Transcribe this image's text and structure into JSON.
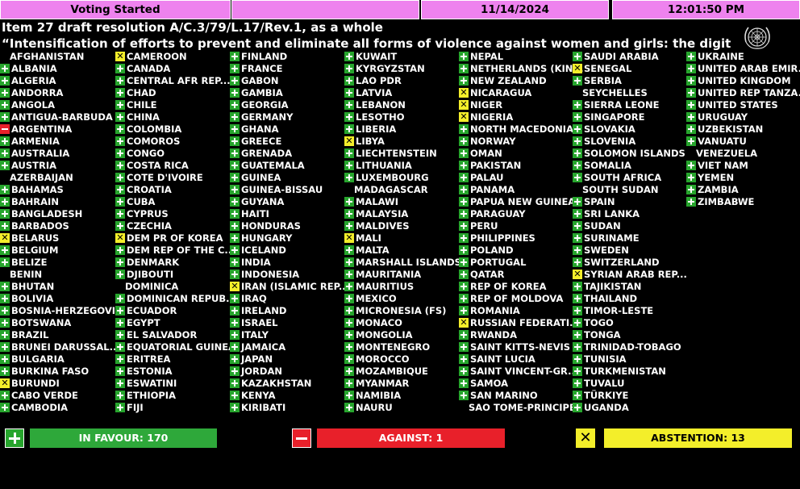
{
  "header": {
    "status": "Voting Started",
    "date": "11/14/2024",
    "time": "12:01:50 PM"
  },
  "title_line1": "Item 27 draft resolution A/C.3/79/L.17/Rev.1, as a whole",
  "title_line2": "“Intensification of efforts to prevent and eliminate all forms of violence against women and girls: the digital",
  "logo_icon": "un-emblem-icon",
  "colors": {
    "yes": "#27a52d",
    "no": "#e8202a",
    "abstain": "#f3ee2a",
    "header": "#ee82ee"
  },
  "columns": [
    [
      {
        "name": "AFGHANISTAN",
        "vote": "none"
      },
      {
        "name": "ALBANIA",
        "vote": "yes"
      },
      {
        "name": "ALGERIA",
        "vote": "yes"
      },
      {
        "name": "ANDORRA",
        "vote": "yes"
      },
      {
        "name": "ANGOLA",
        "vote": "yes"
      },
      {
        "name": "ANTIGUA-BARBUDA",
        "vote": "yes"
      },
      {
        "name": "ARGENTINA",
        "vote": "no"
      },
      {
        "name": "ARMENIA",
        "vote": "yes"
      },
      {
        "name": "AUSTRALIA",
        "vote": "yes"
      },
      {
        "name": "AUSTRIA",
        "vote": "yes"
      },
      {
        "name": "AZERBAIJAN",
        "vote": "none"
      },
      {
        "name": "BAHAMAS",
        "vote": "yes"
      },
      {
        "name": "BAHRAIN",
        "vote": "yes"
      },
      {
        "name": "BANGLADESH",
        "vote": "yes"
      },
      {
        "name": "BARBADOS",
        "vote": "yes"
      },
      {
        "name": "BELARUS",
        "vote": "abstain"
      },
      {
        "name": "BELGIUM",
        "vote": "yes"
      },
      {
        "name": "BELIZE",
        "vote": "yes"
      },
      {
        "name": "BENIN",
        "vote": "none"
      },
      {
        "name": "BHUTAN",
        "vote": "yes"
      },
      {
        "name": "BOLIVIA",
        "vote": "yes"
      },
      {
        "name": "BOSNIA-HERZEGOVI...",
        "vote": "yes"
      },
      {
        "name": "BOTSWANA",
        "vote": "yes"
      },
      {
        "name": "BRAZIL",
        "vote": "yes"
      },
      {
        "name": "BRUNEI DARUSSAL...",
        "vote": "yes"
      },
      {
        "name": "BULGARIA",
        "vote": "yes"
      },
      {
        "name": "BURKINA FASO",
        "vote": "yes"
      },
      {
        "name": "BURUNDI",
        "vote": "abstain"
      },
      {
        "name": "CABO VERDE",
        "vote": "yes"
      },
      {
        "name": "CAMBODIA",
        "vote": "yes"
      }
    ],
    [
      {
        "name": "CAMEROON",
        "vote": "abstain"
      },
      {
        "name": "CANADA",
        "vote": "yes"
      },
      {
        "name": "CENTRAL AFR REP....",
        "vote": "yes"
      },
      {
        "name": "CHAD",
        "vote": "yes"
      },
      {
        "name": "CHILE",
        "vote": "yes"
      },
      {
        "name": "CHINA",
        "vote": "yes"
      },
      {
        "name": "COLOMBIA",
        "vote": "yes"
      },
      {
        "name": "COMOROS",
        "vote": "yes"
      },
      {
        "name": "CONGO",
        "vote": "yes"
      },
      {
        "name": "COSTA RICA",
        "vote": "yes"
      },
      {
        "name": "COTE D'IVOIRE",
        "vote": "yes"
      },
      {
        "name": "CROATIA",
        "vote": "yes"
      },
      {
        "name": "CUBA",
        "vote": "yes"
      },
      {
        "name": "CYPRUS",
        "vote": "yes"
      },
      {
        "name": "CZECHIA",
        "vote": "yes"
      },
      {
        "name": "DEM PR OF KOREA",
        "vote": "abstain"
      },
      {
        "name": "DEM REP OF THE C...",
        "vote": "yes"
      },
      {
        "name": "DENMARK",
        "vote": "yes"
      },
      {
        "name": "DJIBOUTI",
        "vote": "yes"
      },
      {
        "name": "DOMINICA",
        "vote": "none"
      },
      {
        "name": "DOMINICAN REPUB...",
        "vote": "yes"
      },
      {
        "name": "ECUADOR",
        "vote": "yes"
      },
      {
        "name": "EGYPT",
        "vote": "yes"
      },
      {
        "name": "EL SALVADOR",
        "vote": "yes"
      },
      {
        "name": "EQUATORIAL GUINEA",
        "vote": "yes"
      },
      {
        "name": "ERITREA",
        "vote": "yes"
      },
      {
        "name": "ESTONIA",
        "vote": "yes"
      },
      {
        "name": "ESWATINI",
        "vote": "yes"
      },
      {
        "name": "ETHIOPIA",
        "vote": "yes"
      },
      {
        "name": "FIJI",
        "vote": "yes"
      }
    ],
    [
      {
        "name": "FINLAND",
        "vote": "yes"
      },
      {
        "name": "FRANCE",
        "vote": "yes"
      },
      {
        "name": "GABON",
        "vote": "yes"
      },
      {
        "name": "GAMBIA",
        "vote": "yes"
      },
      {
        "name": "GEORGIA",
        "vote": "yes"
      },
      {
        "name": "GERMANY",
        "vote": "yes"
      },
      {
        "name": "GHANA",
        "vote": "yes"
      },
      {
        "name": "GREECE",
        "vote": "yes"
      },
      {
        "name": "GRENADA",
        "vote": "yes"
      },
      {
        "name": "GUATEMALA",
        "vote": "yes"
      },
      {
        "name": "GUINEA",
        "vote": "yes"
      },
      {
        "name": "GUINEA-BISSAU",
        "vote": "yes"
      },
      {
        "name": "GUYANA",
        "vote": "yes"
      },
      {
        "name": "HAITI",
        "vote": "yes"
      },
      {
        "name": "HONDURAS",
        "vote": "yes"
      },
      {
        "name": "HUNGARY",
        "vote": "yes"
      },
      {
        "name": "ICELAND",
        "vote": "yes"
      },
      {
        "name": "INDIA",
        "vote": "yes"
      },
      {
        "name": "INDONESIA",
        "vote": "yes"
      },
      {
        "name": "IRAN (ISLAMIC REP...",
        "vote": "abstain"
      },
      {
        "name": "IRAQ",
        "vote": "yes"
      },
      {
        "name": "IRELAND",
        "vote": "yes"
      },
      {
        "name": "ISRAEL",
        "vote": "yes"
      },
      {
        "name": "ITALY",
        "vote": "yes"
      },
      {
        "name": "JAMAICA",
        "vote": "yes"
      },
      {
        "name": "JAPAN",
        "vote": "yes"
      },
      {
        "name": "JORDAN",
        "vote": "yes"
      },
      {
        "name": "KAZAKHSTAN",
        "vote": "yes"
      },
      {
        "name": "KENYA",
        "vote": "yes"
      },
      {
        "name": "KIRIBATI",
        "vote": "yes"
      }
    ],
    [
      {
        "name": "KUWAIT",
        "vote": "yes"
      },
      {
        "name": "KYRGYZSTAN",
        "vote": "yes"
      },
      {
        "name": "LAO PDR",
        "vote": "yes"
      },
      {
        "name": "LATVIA",
        "vote": "yes"
      },
      {
        "name": "LEBANON",
        "vote": "yes"
      },
      {
        "name": "LESOTHO",
        "vote": "yes"
      },
      {
        "name": "LIBERIA",
        "vote": "yes"
      },
      {
        "name": "LIBYA",
        "vote": "abstain"
      },
      {
        "name": "LIECHTENSTEIN",
        "vote": "yes"
      },
      {
        "name": "LITHUANIA",
        "vote": "yes"
      },
      {
        "name": "LUXEMBOURG",
        "vote": "yes"
      },
      {
        "name": "MADAGASCAR",
        "vote": "none"
      },
      {
        "name": "MALAWI",
        "vote": "yes"
      },
      {
        "name": "MALAYSIA",
        "vote": "yes"
      },
      {
        "name": "MALDIVES",
        "vote": "yes"
      },
      {
        "name": "MALI",
        "vote": "abstain"
      },
      {
        "name": "MALTA",
        "vote": "yes"
      },
      {
        "name": "MARSHALL ISLANDS",
        "vote": "yes"
      },
      {
        "name": "MAURITANIA",
        "vote": "yes"
      },
      {
        "name": "MAURITIUS",
        "vote": "yes"
      },
      {
        "name": "MEXICO",
        "vote": "yes"
      },
      {
        "name": "MICRONESIA (FS)",
        "vote": "yes"
      },
      {
        "name": "MONACO",
        "vote": "yes"
      },
      {
        "name": "MONGOLIA",
        "vote": "yes"
      },
      {
        "name": "MONTENEGRO",
        "vote": "yes"
      },
      {
        "name": "MOROCCO",
        "vote": "yes"
      },
      {
        "name": "MOZAMBIQUE",
        "vote": "yes"
      },
      {
        "name": "MYANMAR",
        "vote": "yes"
      },
      {
        "name": "NAMIBIA",
        "vote": "yes"
      },
      {
        "name": "NAURU",
        "vote": "yes"
      }
    ],
    [
      {
        "name": "NEPAL",
        "vote": "yes"
      },
      {
        "name": "NETHERLANDS (KIN...",
        "vote": "yes"
      },
      {
        "name": "NEW ZEALAND",
        "vote": "yes"
      },
      {
        "name": "NICARAGUA",
        "vote": "abstain"
      },
      {
        "name": "NIGER",
        "vote": "abstain"
      },
      {
        "name": "NIGERIA",
        "vote": "abstain"
      },
      {
        "name": "NORTH MACEDONIA",
        "vote": "yes"
      },
      {
        "name": "NORWAY",
        "vote": "yes"
      },
      {
        "name": "OMAN",
        "vote": "yes"
      },
      {
        "name": "PAKISTAN",
        "vote": "yes"
      },
      {
        "name": "PALAU",
        "vote": "yes"
      },
      {
        "name": "PANAMA",
        "vote": "yes"
      },
      {
        "name": "PAPUA NEW GUINEA",
        "vote": "yes"
      },
      {
        "name": "PARAGUAY",
        "vote": "yes"
      },
      {
        "name": "PERU",
        "vote": "yes"
      },
      {
        "name": "PHILIPPINES",
        "vote": "yes"
      },
      {
        "name": "POLAND",
        "vote": "yes"
      },
      {
        "name": "PORTUGAL",
        "vote": "yes"
      },
      {
        "name": "QATAR",
        "vote": "yes"
      },
      {
        "name": "REP OF KOREA",
        "vote": "yes"
      },
      {
        "name": "REP OF MOLDOVA",
        "vote": "yes"
      },
      {
        "name": "ROMANIA",
        "vote": "yes"
      },
      {
        "name": "RUSSIAN FEDERATI...",
        "vote": "abstain"
      },
      {
        "name": "RWANDA",
        "vote": "yes"
      },
      {
        "name": "SAINT KITTS-NEVIS",
        "vote": "yes"
      },
      {
        "name": "SAINT LUCIA",
        "vote": "yes"
      },
      {
        "name": "SAINT VINCENT-GR...",
        "vote": "yes"
      },
      {
        "name": "SAMOA",
        "vote": "yes"
      },
      {
        "name": "SAN MARINO",
        "vote": "yes"
      },
      {
        "name": "SAO TOME-PRINCIPE",
        "vote": "none"
      }
    ],
    [
      {
        "name": "SAUDI ARABIA",
        "vote": "yes"
      },
      {
        "name": "SENEGAL",
        "vote": "abstain"
      },
      {
        "name": "SERBIA",
        "vote": "yes"
      },
      {
        "name": "SEYCHELLES",
        "vote": "none"
      },
      {
        "name": "SIERRA LEONE",
        "vote": "yes"
      },
      {
        "name": "SINGAPORE",
        "vote": "yes"
      },
      {
        "name": "SLOVAKIA",
        "vote": "yes"
      },
      {
        "name": "SLOVENIA",
        "vote": "yes"
      },
      {
        "name": "SOLOMON ISLANDS",
        "vote": "yes"
      },
      {
        "name": "SOMALIA",
        "vote": "yes"
      },
      {
        "name": "SOUTH AFRICA",
        "vote": "yes"
      },
      {
        "name": "SOUTH SUDAN",
        "vote": "none"
      },
      {
        "name": "SPAIN",
        "vote": "yes"
      },
      {
        "name": "SRI LANKA",
        "vote": "yes"
      },
      {
        "name": "SUDAN",
        "vote": "yes"
      },
      {
        "name": "SURINAME",
        "vote": "yes"
      },
      {
        "name": "SWEDEN",
        "vote": "yes"
      },
      {
        "name": "SWITZERLAND",
        "vote": "yes"
      },
      {
        "name": "SYRIAN ARAB REP...",
        "vote": "abstain"
      },
      {
        "name": "TAJIKISTAN",
        "vote": "yes"
      },
      {
        "name": "THAILAND",
        "vote": "yes"
      },
      {
        "name": "TIMOR-LESTE",
        "vote": "yes"
      },
      {
        "name": "TOGO",
        "vote": "yes"
      },
      {
        "name": "TONGA",
        "vote": "yes"
      },
      {
        "name": "TRINIDAD-TOBAGO",
        "vote": "yes"
      },
      {
        "name": "TUNISIA",
        "vote": "yes"
      },
      {
        "name": "TURKMENISTAN",
        "vote": "yes"
      },
      {
        "name": "TUVALU",
        "vote": "yes"
      },
      {
        "name": "TÜRKIYE",
        "vote": "yes"
      },
      {
        "name": "UGANDA",
        "vote": "yes"
      }
    ],
    [
      {
        "name": "UKRAINE",
        "vote": "yes"
      },
      {
        "name": "UNITED ARAB EMIR...",
        "vote": "yes"
      },
      {
        "name": "UNITED KINGDOM",
        "vote": "yes"
      },
      {
        "name": "UNITED REP TANZA...",
        "vote": "yes"
      },
      {
        "name": "UNITED STATES",
        "vote": "yes"
      },
      {
        "name": "URUGUAY",
        "vote": "yes"
      },
      {
        "name": "UZBEKISTAN",
        "vote": "yes"
      },
      {
        "name": "VANUATU",
        "vote": "yes"
      },
      {
        "name": "VENEZUELA",
        "vote": "none"
      },
      {
        "name": "VIET NAM",
        "vote": "yes"
      },
      {
        "name": "YEMEN",
        "vote": "yes"
      },
      {
        "name": "ZAMBIA",
        "vote": "yes"
      },
      {
        "name": "ZIMBABWE",
        "vote": "yes"
      }
    ]
  ],
  "summary": {
    "in_favour": "IN FAVOUR: 170",
    "against": "AGAINST: 1",
    "abstention": "ABSTENTION: 13"
  }
}
